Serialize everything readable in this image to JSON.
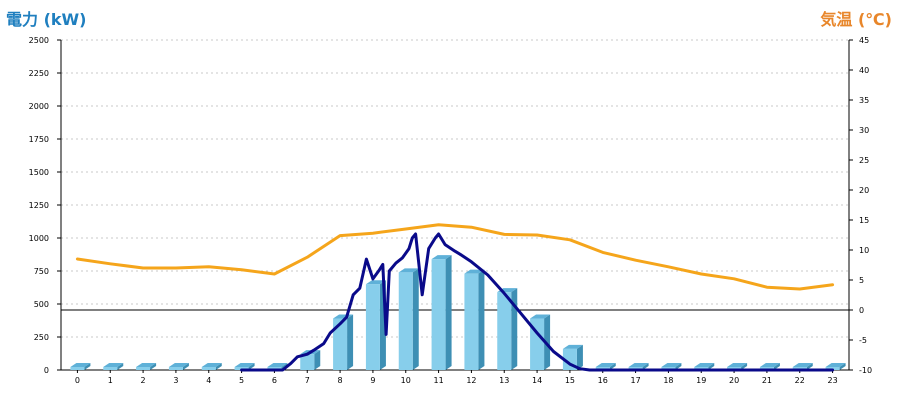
{
  "chart_data": {
    "type": "bar",
    "title": "",
    "ylabel_left": "電力 (kW)",
    "ylabel_right": "気温 (℃)",
    "xlabel": "",
    "categories": [
      "0",
      "1",
      "2",
      "3",
      "4",
      "5",
      "6",
      "7",
      "8",
      "9",
      "10",
      "11",
      "12",
      "13",
      "14",
      "15",
      "16",
      "17",
      "18",
      "19",
      "20",
      "21",
      "22",
      "23"
    ],
    "y_left_ticks": [
      "0",
      "250",
      "500",
      "750",
      "1000",
      "1250",
      "1500",
      "1750",
      "2000",
      "2250",
      "2500"
    ],
    "y_right_ticks": [
      "-10",
      "-5",
      "0",
      "5",
      "10",
      "15",
      "20",
      "25",
      "30",
      "35",
      "40",
      "45"
    ],
    "ylim_left": [
      0,
      2500
    ],
    "ylim_right": [
      -10,
      45
    ],
    "grid": true,
    "series": [
      {
        "kind": "bar-3d",
        "axis": "left",
        "color": "#87ceeb",
        "values": [
          0,
          0,
          0,
          0,
          0,
          0,
          0,
          120,
          390,
          650,
          740,
          840,
          730,
          590,
          390,
          160,
          0,
          0,
          0,
          0,
          0,
          0,
          0,
          0
        ]
      },
      {
        "kind": "line",
        "axis": "left",
        "color": "#0a0a8a",
        "x": [
          5.0,
          6.0,
          6.25,
          6.5,
          6.7,
          7.0,
          7.2,
          7.5,
          7.7,
          8.0,
          8.2,
          8.4,
          8.6,
          8.8,
          9.0,
          9.2,
          9.3,
          9.4,
          9.5,
          9.7,
          9.9,
          10.1,
          10.2,
          10.3,
          10.5,
          10.7,
          10.9,
          11.0,
          11.2,
          11.5,
          11.7,
          12.0,
          12.5,
          13.0,
          13.5,
          14.0,
          14.5,
          15.0,
          15.3,
          15.6,
          16.0,
          17.0,
          18.0,
          19.0,
          20.0,
          21.0,
          22.0,
          23.0
        ],
        "y": [
          0,
          0,
          0,
          50,
          100,
          120,
          150,
          200,
          280,
          350,
          400,
          570,
          620,
          840,
          690,
          760,
          800,
          270,
          750,
          810,
          850,
          920,
          1000,
          1030,
          570,
          920,
          1000,
          1030,
          950,
          900,
          870,
          820,
          720,
          580,
          430,
          280,
          140,
          45,
          10,
          0,
          0,
          0,
          0,
          0,
          0,
          0,
          0,
          0
        ]
      },
      {
        "kind": "line",
        "axis": "right",
        "color": "#f5a51b",
        "x": [
          0,
          1,
          2,
          3,
          4,
          5,
          6,
          7,
          8,
          9,
          10,
          11,
          12,
          13,
          14,
          15,
          16,
          17,
          18,
          19,
          20,
          21,
          22,
          23
        ],
        "y": [
          8.5,
          7.7,
          7.0,
          7.0,
          7.2,
          6.7,
          6.0,
          8.8,
          12.4,
          12.8,
          13.5,
          14.2,
          13.8,
          12.6,
          12.5,
          11.7,
          9.6,
          8.3,
          7.2,
          6.0,
          5.2,
          3.8,
          3.5,
          4.2
        ]
      }
    ]
  }
}
